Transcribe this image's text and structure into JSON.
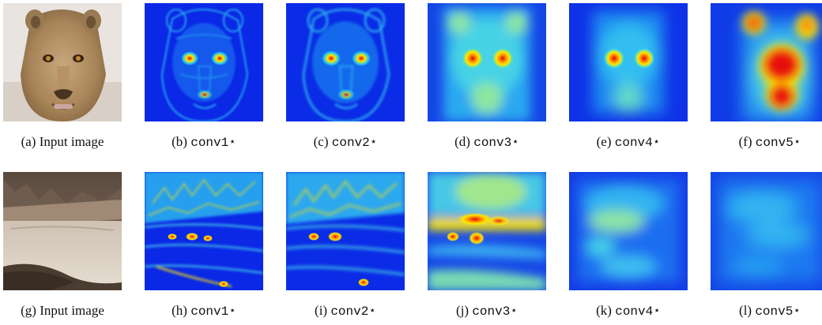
{
  "figure": {
    "row1": [
      {
        "letter": "(a)",
        "name": "Input image",
        "mono": false
      },
      {
        "letter": "(b)",
        "name": "conv1⋆",
        "mono": true
      },
      {
        "letter": "(c)",
        "name": "conv2⋆",
        "mono": true
      },
      {
        "letter": "(d)",
        "name": "conv3⋆",
        "mono": true
      },
      {
        "letter": "(e)",
        "name": "conv4⋆",
        "mono": true
      },
      {
        "letter": "(f)",
        "name": "conv5⋆",
        "mono": true
      }
    ],
    "row2": [
      {
        "letter": "(g)",
        "name": "Input image",
        "mono": false
      },
      {
        "letter": "(h)",
        "name": "conv1⋆",
        "mono": true
      },
      {
        "letter": "(i)",
        "name": "conv2⋆",
        "mono": true
      },
      {
        "letter": "(j)",
        "name": "conv3⋆",
        "mono": true
      },
      {
        "letter": "(k)",
        "name": "conv4⋆",
        "mono": true
      },
      {
        "letter": "(l)",
        "name": "conv5⋆",
        "mono": true
      }
    ]
  },
  "colors": {
    "heat_low": "#0a1ee6",
    "heat_mid": "#28c8f0",
    "heat_high": "#ffe600",
    "heat_peak": "#e60a0a"
  }
}
